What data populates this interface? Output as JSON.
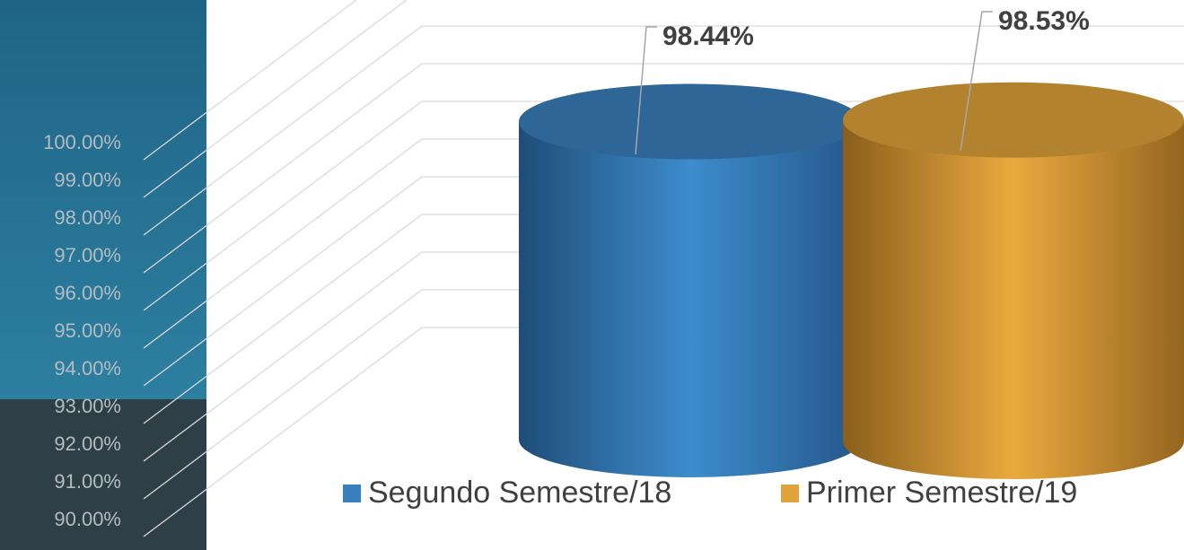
{
  "chart_data": {
    "type": "cylinder",
    "categories": [
      "Segundo Semestre/18",
      "Primer Semestre/19"
    ],
    "series": [
      {
        "name": "Segundo Semestre/18",
        "color": "#3a7fbd",
        "values": [
          98.44,
          null
        ],
        "value_labels": [
          "98.44%",
          null
        ]
      },
      {
        "name": "Primer Semestre/19",
        "color": "#e0a33b",
        "values": [
          null,
          98.53
        ],
        "value_labels": [
          null,
          "98.53%"
        ]
      }
    ],
    "ylim": [
      90,
      100
    ],
    "yticks": [
      {
        "value": 90,
        "label": "90.00%"
      },
      {
        "value": 91,
        "label": "91.00%"
      },
      {
        "value": 92,
        "label": "92.00%"
      },
      {
        "value": 93,
        "label": "93.00%"
      },
      {
        "value": 94,
        "label": "94.00%"
      },
      {
        "value": 95,
        "label": "95.00%"
      },
      {
        "value": 96,
        "label": "96.00%"
      },
      {
        "value": 97,
        "label": "97.00%"
      },
      {
        "value": 98,
        "label": "98.00%"
      },
      {
        "value": 99,
        "label": "99.00%"
      },
      {
        "value": 100,
        "label": "100.00%"
      }
    ],
    "grid": true,
    "legend": "bottom"
  }
}
